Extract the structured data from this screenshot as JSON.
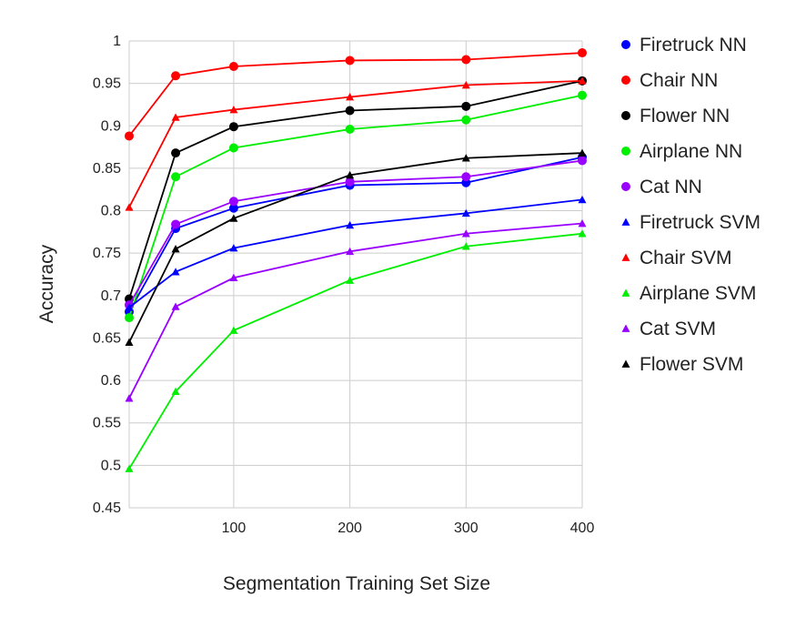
{
  "chart_data": {
    "type": "line",
    "title": "",
    "xlabel": "Segmentation Training Set Size",
    "ylabel": "Accuracy",
    "x": [
      10,
      50,
      100,
      200,
      300,
      400
    ],
    "xticks": [
      100,
      200,
      300,
      400
    ],
    "xtick_labels": [
      "100",
      "200",
      "300",
      "400"
    ],
    "xlim": [
      10,
      400
    ],
    "ylim": [
      0.45,
      1
    ],
    "yticks": [
      0.45,
      0.5,
      0.55,
      0.6,
      0.65,
      0.7,
      0.75,
      0.8,
      0.85,
      0.9,
      0.95,
      1
    ],
    "ytick_labels": [
      "0.45",
      "0.5",
      "0.55",
      "0.6",
      "0.65",
      "0.7",
      "0.75",
      "0.8",
      "0.85",
      "0.9",
      "0.95",
      "1"
    ],
    "grid": true,
    "legend_position": "right",
    "series": [
      {
        "name": "Firetruck NN",
        "color": "#0000ff",
        "marker": "circle",
        "values": [
          0.681,
          0.779,
          0.803,
          0.83,
          0.833,
          0.863
        ]
      },
      {
        "name": "Chair NN",
        "color": "#ff0000",
        "marker": "circle",
        "values": [
          0.888,
          0.959,
          0.97,
          0.977,
          0.978,
          0.986
        ]
      },
      {
        "name": "Flower NN",
        "color": "#000000",
        "marker": "circle",
        "values": [
          0.696,
          0.868,
          0.899,
          0.918,
          0.923,
          0.953
        ]
      },
      {
        "name": "Airplane NN",
        "color": "#00ee00",
        "marker": "circle",
        "values": [
          0.674,
          0.84,
          0.874,
          0.896,
          0.907,
          0.936
        ]
      },
      {
        "name": "Cat NN",
        "color": "#9900ff",
        "marker": "circle",
        "values": [
          0.689,
          0.784,
          0.811,
          0.834,
          0.84,
          0.859
        ]
      },
      {
        "name": "Firetruck SVM",
        "color": "#0000ff",
        "marker": "triangle",
        "values": [
          0.686,
          0.728,
          0.756,
          0.783,
          0.797,
          0.813
        ]
      },
      {
        "name": "Chair SVM",
        "color": "#ff0000",
        "marker": "triangle",
        "values": [
          0.804,
          0.91,
          0.919,
          0.934,
          0.948,
          0.953
        ]
      },
      {
        "name": "Airplane SVM",
        "color": "#00ee00",
        "marker": "triangle",
        "values": [
          0.496,
          0.587,
          0.659,
          0.718,
          0.758,
          0.773
        ]
      },
      {
        "name": "Cat SVM",
        "color": "#9900ff",
        "marker": "triangle",
        "values": [
          0.579,
          0.687,
          0.721,
          0.752,
          0.773,
          0.785
        ]
      },
      {
        "name": "Flower SVM",
        "color": "#000000",
        "marker": "triangle",
        "values": [
          0.645,
          0.755,
          0.791,
          0.842,
          0.862,
          0.868
        ]
      }
    ]
  }
}
